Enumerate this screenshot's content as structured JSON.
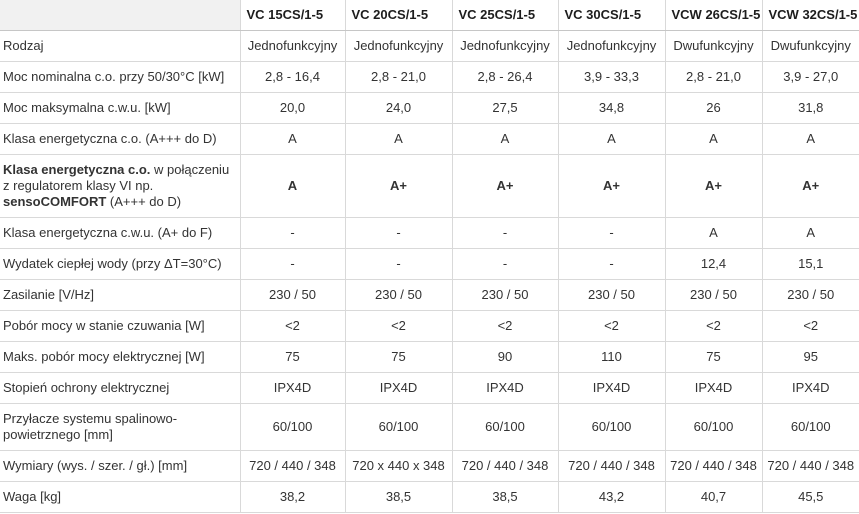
{
  "colors": {
    "border": "#d9d9d9",
    "header_border": "#c6c6c6",
    "corner_bg": "#f1f1f1",
    "text": "#333333",
    "header_text": "#1d1d1d"
  },
  "table": {
    "corner_label": "",
    "columns": [
      "VC 15CS/1-5",
      "VC 20CS/1-5",
      "VC 25CS/1-5",
      "VC 30CS/1-5",
      "VCW 26CS/1-5",
      "VCW 32CS/1-5"
    ],
    "rows": [
      {
        "label": "Rodzaj",
        "values": [
          "Jednofunkcyjny",
          "Jednofunkcyjny",
          "Jednofunkcyjny",
          "Jednofunkcyjny",
          "Dwufunkcyjny",
          "Dwufunkcyjny"
        ]
      },
      {
        "label": "Moc nominalna c.o. przy 50/30°C [kW]",
        "values": [
          "2,8 - 16,4",
          "2,8 - 21,0",
          "2,8 - 26,4",
          "3,9 - 33,3",
          "2,8 - 21,0",
          "3,9 - 27,0"
        ]
      },
      {
        "label": "Moc maksymalna c.w.u. [kW]",
        "values": [
          "20,0",
          "24,0",
          "27,5",
          "34,8",
          "26",
          "31,8"
        ]
      },
      {
        "label": "Klasa energetyczna c.o. (A+++ do D)",
        "values": [
          "A",
          "A",
          "A",
          "A",
          "A",
          "A"
        ]
      },
      {
        "label_parts": [
          {
            "text": "Klasa energetyczna c.o.",
            "bold": true
          },
          {
            "text": " w połączeniu z regulatorem klasy VI np. ",
            "bold": false
          },
          {
            "text": "sensoCOMFORT",
            "bold": true
          },
          {
            "text": " (A+++ do D)",
            "bold": false
          }
        ],
        "values": [
          "A",
          "A+",
          "A+",
          "A+",
          "A+",
          "A+"
        ],
        "values_bold": true
      },
      {
        "label": "Klasa energetyczna c.w.u. (A+ do F)",
        "values": [
          "-",
          "-",
          "-",
          "-",
          "A",
          "A"
        ]
      },
      {
        "label": "Wydatek ciepłej wody (przy ΔT=30°C)",
        "values": [
          "-",
          "-",
          "-",
          "-",
          "12,4",
          "15,1"
        ]
      },
      {
        "label": "Zasilanie [V/Hz]",
        "values": [
          "230 / 50",
          "230 / 50",
          "230 / 50",
          "230 / 50",
          "230 / 50",
          "230 / 50"
        ]
      },
      {
        "label": "Pobór mocy w stanie czuwania [W]",
        "values": [
          "<2",
          "<2",
          "<2",
          "<2",
          "<2",
          "<2"
        ]
      },
      {
        "label": "Maks. pobór mocy elektrycznej [W]",
        "values": [
          "75",
          "75",
          "90",
          "110",
          "75",
          "95"
        ]
      },
      {
        "label": "Stopień ochrony elektrycznej",
        "values": [
          "IPX4D",
          "IPX4D",
          "IPX4D",
          "IPX4D",
          "IPX4D",
          "IPX4D"
        ]
      },
      {
        "label": "Przyłacze systemu spalinowo-powietrznego [mm]",
        "values": [
          "60/100",
          "60/100",
          "60/100",
          "60/100",
          "60/100",
          "60/100"
        ]
      },
      {
        "label": "Wymiary (wys. / szer. / gł.) [mm]",
        "values": [
          "720 / 440 / 348",
          "720 x 440 x 348",
          "720 / 440 / 348",
          "720 / 440 / 348",
          "720 / 440 / 348",
          "720 / 440 / 348"
        ]
      },
      {
        "label": "Waga [kg]",
        "values": [
          "38,2",
          "38,5",
          "38,5",
          "43,2",
          "40,7",
          "45,5"
        ]
      }
    ]
  }
}
